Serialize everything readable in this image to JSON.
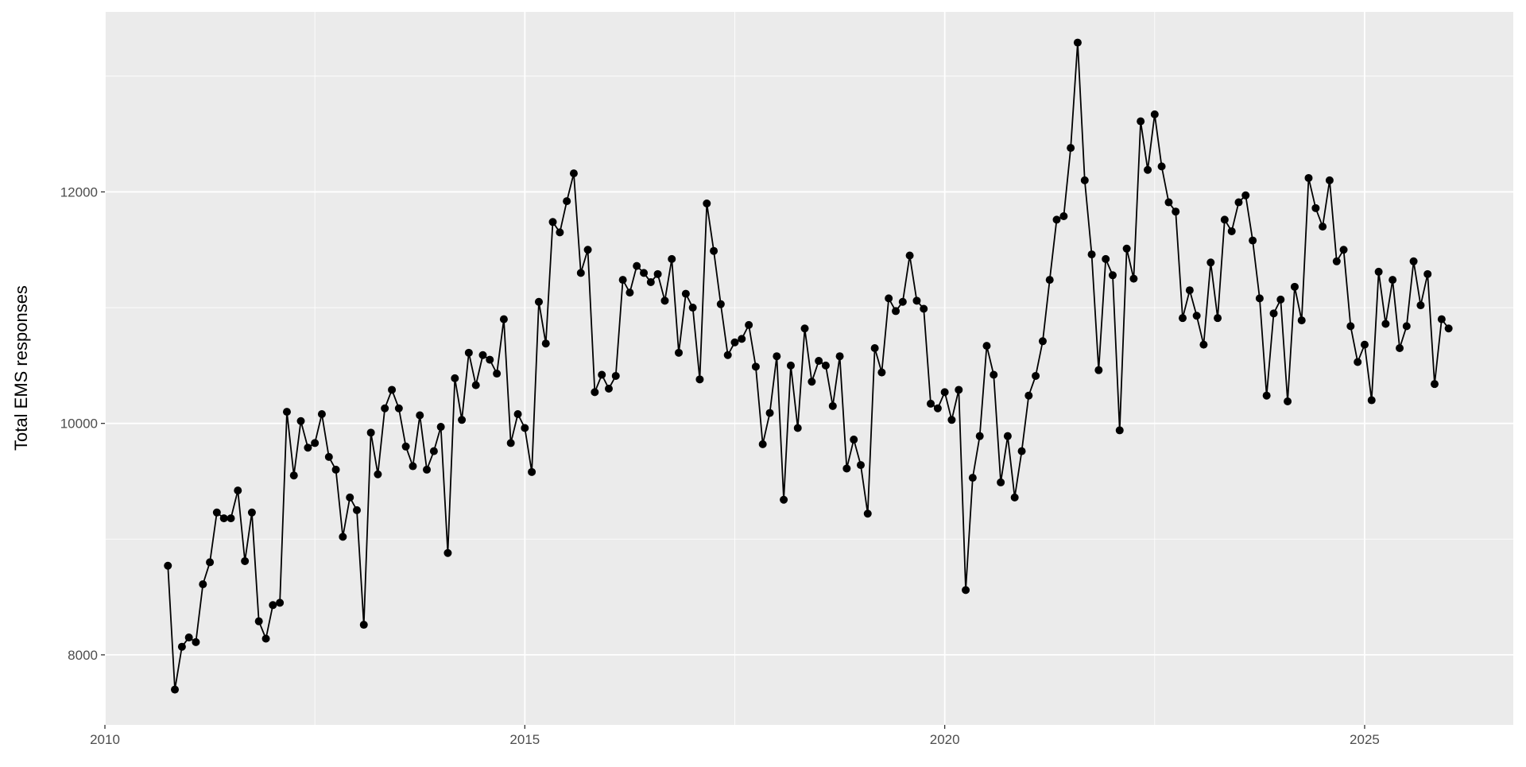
{
  "chart_data": {
    "type": "line",
    "y_label": "Total EMS responses",
    "color": "#000000",
    "markers": true,
    "grid": true,
    "xlim": [
      2010,
      2026.77
    ],
    "xticks": [
      2010,
      2015,
      2020,
      2025
    ],
    "ylim": [
      7395,
      13555
    ],
    "yticks": [
      8000,
      10000,
      12000
    ],
    "x": [
      2010.75,
      2010.833,
      2010.917,
      2011,
      2011.083,
      2011.167,
      2011.25,
      2011.333,
      2011.417,
      2011.5,
      2011.583,
      2011.667,
      2011.75,
      2011.833,
      2011.917,
      2012,
      2012.083,
      2012.167,
      2012.25,
      2012.333,
      2012.417,
      2012.5,
      2012.583,
      2012.667,
      2012.75,
      2012.833,
      2012.917,
      2013,
      2013.083,
      2013.167,
      2013.25,
      2013.333,
      2013.417,
      2013.5,
      2013.583,
      2013.667,
      2013.75,
      2013.833,
      2013.917,
      2014,
      2014.083,
      2014.167,
      2014.25,
      2014.333,
      2014.417,
      2014.5,
      2014.583,
      2014.667,
      2014.75,
      2014.833,
      2014.917,
      2015,
      2015.083,
      2015.167,
      2015.25,
      2015.333,
      2015.417,
      2015.5,
      2015.583,
      2015.667,
      2015.75,
      2015.833,
      2015.917,
      2016,
      2016.083,
      2016.167,
      2016.25,
      2016.333,
      2016.417,
      2016.5,
      2016.583,
      2016.667,
      2016.75,
      2016.833,
      2016.917,
      2017,
      2017.083,
      2017.167,
      2017.25,
      2017.333,
      2017.417,
      2017.5,
      2017.583,
      2017.667,
      2017.75,
      2017.833,
      2017.917,
      2018,
      2018.083,
      2018.167,
      2018.25,
      2018.333,
      2018.417,
      2018.5,
      2018.583,
      2018.667,
      2018.75,
      2018.833,
      2018.917,
      2019,
      2019.083,
      2019.167,
      2019.25,
      2019.333,
      2019.417,
      2019.5,
      2019.583,
      2019.667,
      2019.75,
      2019.833,
      2019.917,
      2020,
      2020.083,
      2020.167,
      2020.25,
      2020.333,
      2020.417,
      2020.5,
      2020.583,
      2020.667,
      2020.75,
      2020.833,
      2020.917,
      2021,
      2021.083,
      2021.167,
      2021.25,
      2021.333,
      2021.417,
      2021.5,
      2021.583,
      2021.667,
      2021.75,
      2021.833,
      2021.917,
      2022,
      2022.083,
      2022.167,
      2022.25,
      2022.333,
      2022.417,
      2022.5,
      2022.583,
      2022.667,
      2022.75,
      2022.833,
      2022.917,
      2023,
      2023.083,
      2023.167,
      2023.25,
      2023.333,
      2023.417,
      2023.5,
      2023.583,
      2023.667,
      2023.75,
      2023.833,
      2023.917,
      2024,
      2024.083,
      2024.167,
      2024.25,
      2024.333,
      2024.417,
      2024.5,
      2024.583,
      2024.667,
      2024.75,
      2024.833,
      2024.917,
      2025,
      2025.083,
      2025.167,
      2025.25,
      2025.333,
      2025.417,
      2025.5,
      2025.583,
      2025.667,
      2025.75,
      2025.833,
      2025.917,
      2026
    ],
    "values": [
      8770,
      7700,
      8070,
      8150,
      8110,
      8610,
      8800,
      9230,
      9180,
      9180,
      9420,
      8810,
      9230,
      8290,
      8140,
      8430,
      8450,
      10100,
      9550,
      10020,
      9790,
      9830,
      10080,
      9710,
      9600,
      9020,
      9360,
      9250,
      8260,
      9920,
      9560,
      10130,
      10290,
      10130,
      9800,
      9630,
      10070,
      9600,
      9760,
      9970,
      8880,
      10390,
      10030,
      10610,
      10330,
      10590,
      10550,
      10430,
      10900,
      9830,
      10080,
      9960,
      9580,
      11050,
      10690,
      11740,
      11650,
      11920,
      12160,
      11300,
      11500,
      10270,
      10420,
      10300,
      10410,
      11240,
      11130,
      11360,
      11300,
      11220,
      11290,
      11060,
      11420,
      10610,
      11120,
      11000,
      10380,
      11900,
      11490,
      11030,
      10590,
      10700,
      10730,
      10850,
      10490,
      9820,
      10090,
      10580,
      9340,
      10500,
      9960,
      10820,
      10360,
      10540,
      10500,
      10150,
      10580,
      9610,
      9860,
      9640,
      9220,
      10650,
      10440,
      11080,
      10970,
      11050,
      11450,
      11060,
      10990,
      10170,
      10130,
      10270,
      10030,
      10290,
      8560,
      9530,
      9890,
      10670,
      10420,
      9490,
      9890,
      9360,
      9760,
      10240,
      10410,
      10710,
      11240,
      11760,
      11790,
      12380,
      13290,
      12100,
      11460,
      10460,
      11420,
      11280,
      9940,
      11510,
      11250,
      12610,
      12190,
      12670,
      12220,
      11910,
      11830,
      10910,
      11150,
      10930,
      10680,
      11390,
      10910,
      11760,
      11660,
      11910,
      11970,
      11580,
      11080,
      10240,
      10950,
      11070,
      10190,
      11180,
      10890,
      12120,
      11860,
      11700,
      12100,
      11400,
      11500,
      10840,
      10530,
      10680,
      10200,
      11310,
      10860,
      11240,
      10650,
      10840,
      11400,
      11020,
      11290,
      10340,
      10900,
      10820
    ]
  }
}
